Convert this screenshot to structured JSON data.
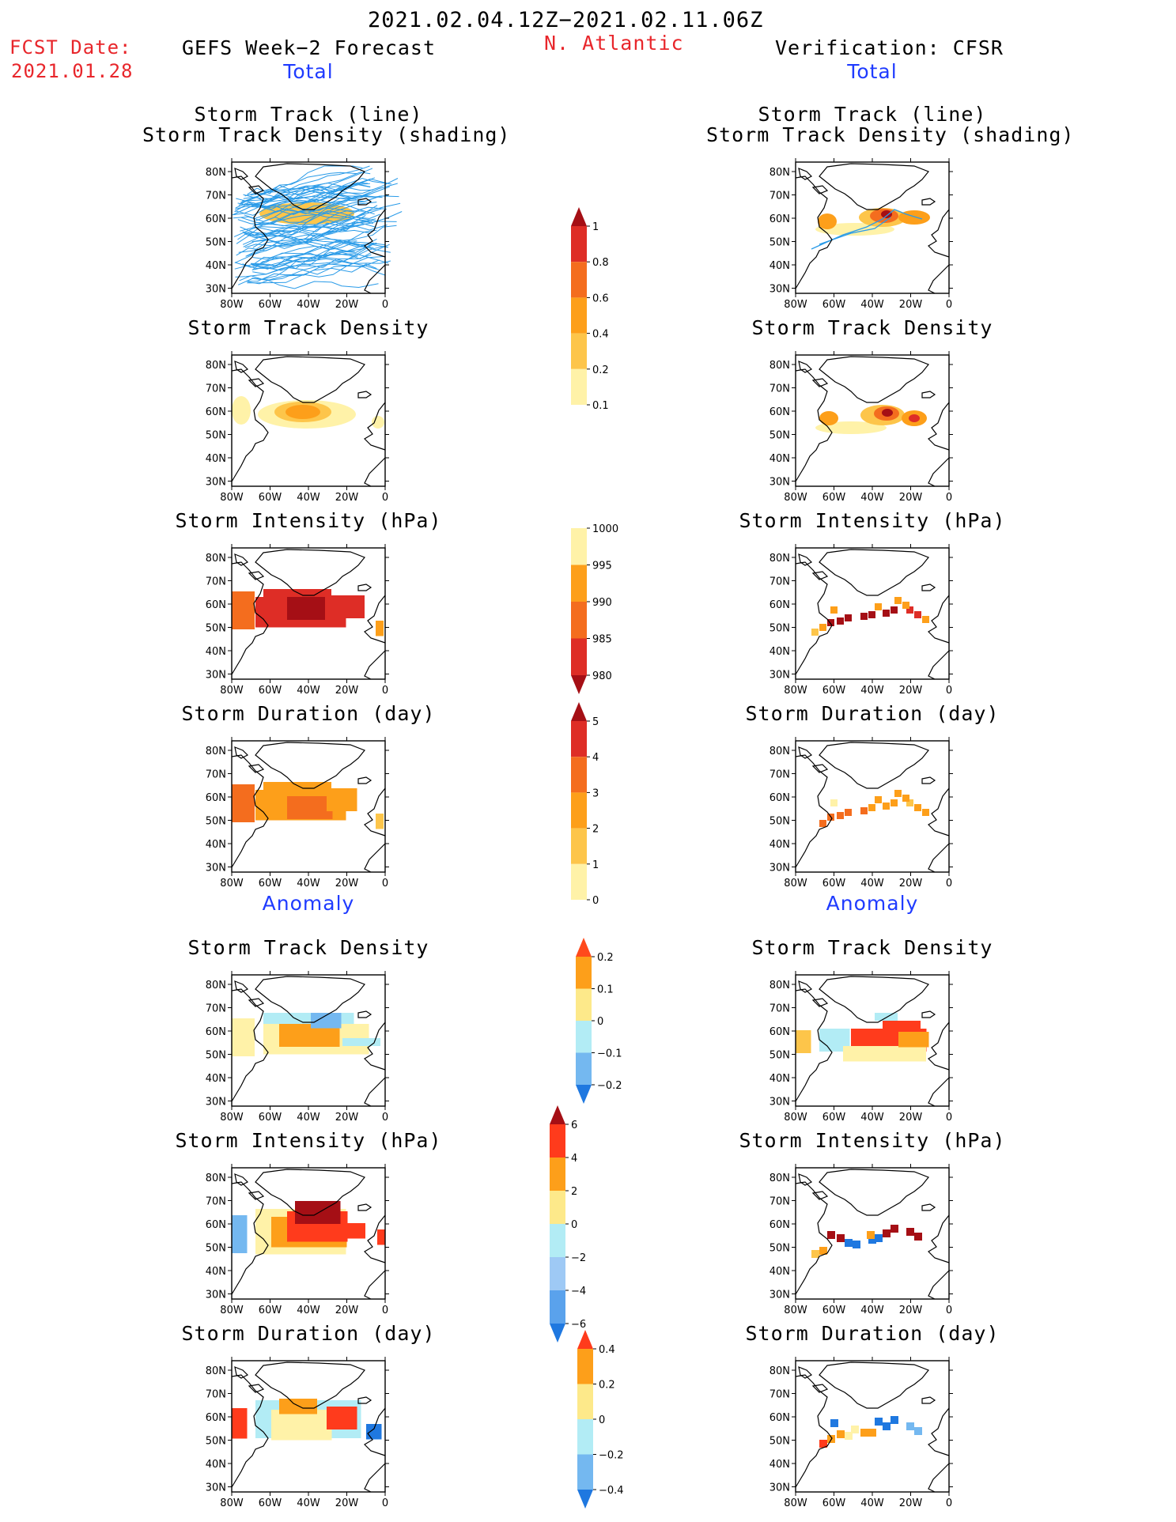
{
  "header": {
    "date_range": "2021.02.04.12Z−2021.02.11.06Z",
    "fcst_label": "FCST Date:",
    "fcst_date": "2021.01.28",
    "left_title": "GEFS Week−2 Forecast",
    "region": "N. Atlantic",
    "right_title": "Verification: CFSR"
  },
  "sections": {
    "total": "Total",
    "anomaly": "Anomaly"
  },
  "panel_titles": {
    "track": [
      "Storm Track (line)",
      "Storm Track Density (shading)"
    ],
    "density": "Storm Track Density",
    "intensity": "Storm Intensity (hPa)",
    "duration": "Storm Duration (day)"
  },
  "axis": {
    "lat_labels": [
      "80N",
      "70N",
      "60N",
      "50N",
      "40N",
      "30N"
    ],
    "lon_labels": [
      "80W",
      "60W",
      "40W",
      "20W",
      "0"
    ]
  },
  "colorbars": [
    {
      "name": "total-density",
      "labels": [
        "1",
        "0.8",
        "0.6",
        "0.4",
        "0.2",
        "0.1"
      ],
      "colors": [
        "#a50f15",
        "#de2d26",
        "#f46d1e",
        "#fd9f1a",
        "#fdc54a",
        "#fff2a8"
      ],
      "end": "up"
    },
    {
      "name": "total-intensity",
      "labels": [
        "1000",
        "995",
        "990",
        "985",
        "980"
      ],
      "colors": [
        "#fff2a8",
        "#fd9f1a",
        "#f46d1e",
        "#de2d26",
        "#a50f15"
      ],
      "end": "down"
    },
    {
      "name": "total-duration",
      "labels": [
        "5",
        "4",
        "3",
        "2",
        "1",
        "0"
      ],
      "colors": [
        "#a50f15",
        "#de2d26",
        "#f46d1e",
        "#fd9f1a",
        "#fdc54a",
        "#fff2a8"
      ],
      "end": "up"
    },
    {
      "name": "anom-density",
      "labels": [
        "0.2",
        "0.1",
        "0",
        "−0.1",
        "−0.2"
      ],
      "colors": [
        "#ff4a1c",
        "#fd9f1a",
        "#fde98a",
        "#b2ecf5",
        "#74b8f0",
        "#1f78e0"
      ],
      "end": "both"
    },
    {
      "name": "anom-intensity",
      "labels": [
        "6",
        "4",
        "2",
        "0",
        "−2",
        "−4",
        "−6"
      ],
      "colors": [
        "#a50f15",
        "#ff3b1c",
        "#fd9f1a",
        "#fde98a",
        "#b2ecf5",
        "#9ec9f5",
        "#5aa2ec",
        "#1f78e0"
      ],
      "end": "both"
    },
    {
      "name": "anom-duration",
      "labels": [
        "0.4",
        "0.2",
        "0",
        "−0.2",
        "−0.4"
      ],
      "colors": [
        "#ff3b1c",
        "#fd9f1a",
        "#fde98a",
        "#b2ecf5",
        "#74b8f0",
        "#1f78e0"
      ],
      "end": "both"
    }
  ],
  "palette": {
    "track_line": "#2a9be8",
    "land_outline": "#000000",
    "title_red": "#e8262b",
    "title_blue": "#1f3bff"
  }
}
